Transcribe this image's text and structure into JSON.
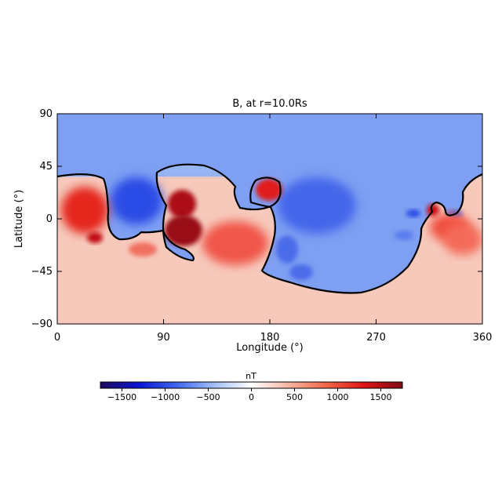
{
  "chart_data": {
    "type": "heatmap",
    "title": "B, at r=10.0Rs",
    "xlabel": "Longitude (°)",
    "ylabel": "Latitude (°)",
    "xlim": [
      0,
      360
    ],
    "ylim": [
      -90,
      90
    ],
    "xticks": [
      0,
      90,
      180,
      270,
      360
    ],
    "yticks": [
      90,
      45,
      0,
      -45,
      -90
    ],
    "xtick_labels": [
      "0",
      "90",
      "180",
      "270",
      "360"
    ],
    "ytick_labels": [
      "90",
      "45",
      "0",
      "−45",
      "−90"
    ],
    "grid": false,
    "colormap": "blue-white-red (diverging)",
    "colorbar": {
      "label": "nT",
      "range": [
        -1750,
        1750
      ],
      "ticks": [
        -1500,
        -1000,
        -500,
        0,
        500,
        1000,
        1500
      ],
      "tick_labels": [
        "−1500",
        "−1000",
        "−500",
        "0",
        "500",
        "1000",
        "1500"
      ],
      "colors": [
        "#1e0a5a",
        "#0a14d2",
        "#3c64ee",
        "#a0bef8",
        "#ffffff",
        "#f8b4a0",
        "#f06446",
        "#dc1414",
        "#820a14"
      ]
    },
    "regions": [
      {
        "lon": 20,
        "lat": 5,
        "sign": "positive",
        "value": 1000
      },
      {
        "lon": 30,
        "lat": -15,
        "sign": "positive",
        "value": 1300
      },
      {
        "lon": 65,
        "lat": 15,
        "sign": "negative",
        "value": -900
      },
      {
        "lon": 105,
        "lat": 15,
        "sign": "positive",
        "value": 1400
      },
      {
        "lon": 110,
        "lat": -10,
        "sign": "positive",
        "value": 1700
      },
      {
        "lon": 150,
        "lat": -15,
        "sign": "positive",
        "value": 700
      },
      {
        "lon": 175,
        "lat": 28,
        "sign": "positive",
        "value": 1000
      },
      {
        "lon": 210,
        "lat": 20,
        "sign": "negative",
        "value": -800
      },
      {
        "lon": 185,
        "lat": -20,
        "sign": "negative",
        "value": -650
      },
      {
        "lon": 320,
        "lat": 8,
        "sign": "positive",
        "value": 1200
      },
      {
        "lon": 340,
        "lat": -10,
        "sign": "positive",
        "value": 850
      },
      {
        "lon": 300,
        "lat": 5,
        "sign": "negative",
        "value": -650
      },
      {
        "lon": 180,
        "lat": 80,
        "sign": "negative",
        "value": -400
      },
      {
        "lon": 180,
        "lat": -70,
        "sign": "positive",
        "value": 250
      }
    ],
    "contour": "B = 0 neutral line (polarity inversion)"
  }
}
